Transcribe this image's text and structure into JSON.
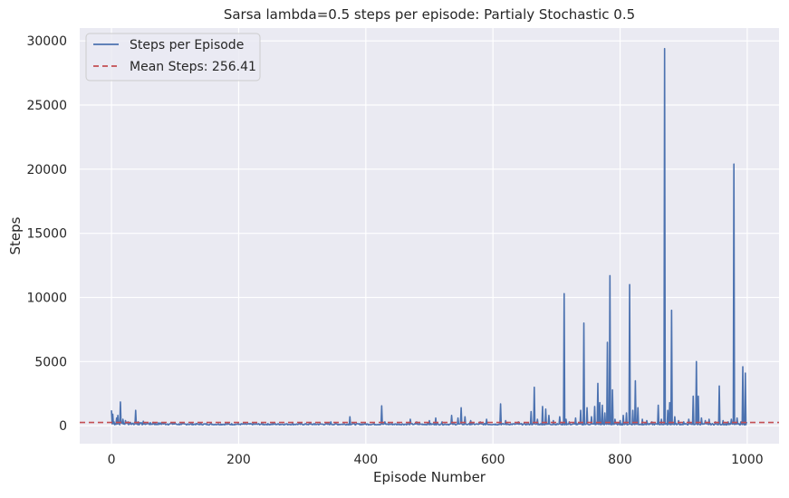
{
  "chart_data": {
    "type": "line",
    "title": "Sarsa lambda=0.5 steps per episode: Partialy Stochastic 0.5",
    "xlabel": "Episode Number",
    "ylabel": "Steps",
    "xlim": [
      -50,
      1050
    ],
    "ylim": [
      -1400,
      31000
    ],
    "xticks": [
      0,
      200,
      400,
      600,
      800,
      1000
    ],
    "yticks": [
      0,
      5000,
      10000,
      15000,
      20000,
      25000,
      30000
    ],
    "grid": true,
    "legend": {
      "position": "top-left",
      "entries": [
        "Steps per Episode",
        "Mean Steps: 256.41"
      ]
    },
    "mean_line": {
      "value": 256.41,
      "color": "#c44e52",
      "style": "dashed"
    },
    "series": [
      {
        "name": "Steps per Episode",
        "color": "#4c72b0",
        "baseline": 60,
        "points": [
          [
            0,
            1200
          ],
          [
            2,
            900
          ],
          [
            4,
            300
          ],
          [
            6,
            150
          ],
          [
            8,
            600
          ],
          [
            10,
            800
          ],
          [
            12,
            200
          ],
          [
            14,
            1850
          ],
          [
            16,
            250
          ],
          [
            18,
            500
          ],
          [
            20,
            150
          ],
          [
            22,
            400
          ],
          [
            24,
            200
          ],
          [
            26,
            300
          ],
          [
            28,
            150
          ],
          [
            30,
            250
          ],
          [
            32,
            120
          ],
          [
            34,
            200
          ],
          [
            36,
            100
          ],
          [
            38,
            1200
          ],
          [
            40,
            150
          ],
          [
            42,
            300
          ],
          [
            44,
            100
          ],
          [
            46,
            200
          ],
          [
            48,
            80
          ],
          [
            50,
            350
          ],
          [
            54,
            120
          ],
          [
            58,
            200
          ],
          [
            62,
            100
          ],
          [
            66,
            250
          ],
          [
            70,
            80
          ],
          [
            75,
            150
          ],
          [
            80,
            200
          ],
          [
            86,
            100
          ],
          [
            92,
            150
          ],
          [
            100,
            200
          ],
          [
            110,
            100
          ],
          [
            120,
            150
          ],
          [
            140,
            100
          ],
          [
            160,
            80
          ],
          [
            200,
            100
          ],
          [
            240,
            80
          ],
          [
            280,
            100
          ],
          [
            320,
            80
          ],
          [
            345,
            300
          ],
          [
            375,
            700
          ],
          [
            380,
            200
          ],
          [
            400,
            150
          ],
          [
            425,
            1550
          ],
          [
            430,
            300
          ],
          [
            470,
            500
          ],
          [
            480,
            300
          ],
          [
            500,
            400
          ],
          [
            510,
            600
          ],
          [
            520,
            300
          ],
          [
            535,
            800
          ],
          [
            545,
            600
          ],
          [
            550,
            1400
          ],
          [
            556,
            700
          ],
          [
            565,
            400
          ],
          [
            580,
            300
          ],
          [
            590,
            500
          ],
          [
            612,
            1700
          ],
          [
            620,
            400
          ],
          [
            640,
            300
          ],
          [
            660,
            1100
          ],
          [
            665,
            3000
          ],
          [
            670,
            500
          ],
          [
            678,
            1500
          ],
          [
            683,
            1300
          ],
          [
            688,
            800
          ],
          [
            695,
            400
          ],
          [
            705,
            700
          ],
          [
            712,
            10300
          ],
          [
            715,
            500
          ],
          [
            720,
            300
          ],
          [
            730,
            600
          ],
          [
            738,
            1200
          ],
          [
            743,
            8000
          ],
          [
            748,
            1400
          ],
          [
            755,
            700
          ],
          [
            760,
            1500
          ],
          [
            765,
            3300
          ],
          [
            768,
            1800
          ],
          [
            772,
            1600
          ],
          [
            776,
            1000
          ],
          [
            780,
            6500
          ],
          [
            784,
            11700
          ],
          [
            788,
            2800
          ],
          [
            792,
            500
          ],
          [
            800,
            400
          ],
          [
            805,
            800
          ],
          [
            810,
            1000
          ],
          [
            815,
            11000
          ],
          [
            820,
            1200
          ],
          [
            824,
            3500
          ],
          [
            828,
            1400
          ],
          [
            835,
            500
          ],
          [
            842,
            400
          ],
          [
            850,
            300
          ],
          [
            860,
            1600
          ],
          [
            865,
            500
          ],
          [
            870,
            29400
          ],
          [
            875,
            1200
          ],
          [
            878,
            1800
          ],
          [
            881,
            9000
          ],
          [
            886,
            700
          ],
          [
            892,
            400
          ],
          [
            900,
            300
          ],
          [
            908,
            500
          ],
          [
            915,
            2300
          ],
          [
            920,
            5000
          ],
          [
            923,
            2300
          ],
          [
            928,
            600
          ],
          [
            934,
            400
          ],
          [
            940,
            500
          ],
          [
            950,
            300
          ],
          [
            956,
            3100
          ],
          [
            962,
            400
          ],
          [
            970,
            300
          ],
          [
            975,
            500
          ],
          [
            979,
            20400
          ],
          [
            984,
            600
          ],
          [
            990,
            300
          ],
          [
            993,
            4600
          ],
          [
            997,
            4100
          ],
          [
            999,
            300
          ]
        ]
      }
    ]
  }
}
